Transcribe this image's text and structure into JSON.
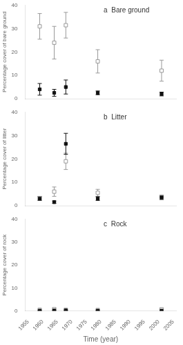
{
  "chart_data": [
    {
      "type": "scatter",
      "title": "a  Bare ground",
      "ylabel": "Percentage cover of bare ground",
      "x": [
        1959,
        1964,
        1968,
        1979,
        2001
      ],
      "series": [
        {
          "color": "#999999",
          "marker": "open_square",
          "values": [
            31.0,
            24.0,
            31.5,
            16.0,
            12.0
          ],
          "errors": [
            5.5,
            7.0,
            5.5,
            5.0,
            4.5
          ]
        },
        {
          "color": "#111111",
          "marker": "square",
          "values": [
            4.0,
            2.5,
            5.0,
            2.5,
            2.0
          ],
          "errors": [
            2.5,
            1.5,
            3.0,
            0.8,
            0.8
          ]
        }
      ],
      "xlim": [
        1954,
        2006
      ],
      "xticks": [
        1955,
        1960,
        1965,
        1970,
        1975,
        1980,
        1985,
        1990,
        1995,
        2000,
        2005
      ],
      "ylim": [
        0,
        40
      ],
      "yticks": [
        0,
        10,
        20,
        30,
        40
      ],
      "grid": false,
      "tick_labels": "y"
    },
    {
      "type": "scatter",
      "title": "b  Litter",
      "ylabel": "Percentage cover of litter",
      "x": [
        1959,
        1964,
        1968,
        1979,
        2001
      ],
      "series": [
        {
          "color": "#999999",
          "marker": "open_square",
          "values": [
            3.2,
            6.0,
            19.0,
            5.5,
            3.5
          ],
          "errors": [
            0.8,
            2.0,
            3.5,
            1.5,
            1.0
          ]
        },
        {
          "color": "#111111",
          "marker": "square",
          "values": [
            3.0,
            1.5,
            26.5,
            3.0,
            3.5
          ],
          "errors": [
            0.8,
            0.5,
            4.5,
            0.8,
            0.8
          ]
        }
      ],
      "xlim": [
        1954,
        2006
      ],
      "xticks": [
        1955,
        1960,
        1965,
        1970,
        1975,
        1980,
        1985,
        1990,
        1995,
        2000,
        2005
      ],
      "ylim": [
        0,
        40
      ],
      "yticks": [
        0,
        10,
        20,
        30,
        40
      ],
      "grid": false,
      "tick_labels": "y"
    },
    {
      "type": "scatter",
      "title": "c  Rock",
      "ylabel": "Percentage cover of rock",
      "xlabel": "Time (year)",
      "x": [
        1959,
        1964,
        1968,
        1979,
        2001
      ],
      "series": [
        {
          "color": "#999999",
          "marker": "open_square",
          "values": [
            0.5,
            0.8,
            0.5,
            0.4,
            0.7
          ],
          "errors": [
            0.2,
            0.3,
            0.2,
            0.15,
            0.2
          ]
        },
        {
          "color": "#111111",
          "marker": "square",
          "values": [
            0.1,
            0.2,
            0.2,
            0.1,
            0.1
          ],
          "errors": [
            0.05,
            0.1,
            0.05,
            0.05,
            0.05
          ]
        }
      ],
      "xlim": [
        1954,
        2006
      ],
      "xticks": [
        1955,
        1960,
        1965,
        1970,
        1975,
        1980,
        1985,
        1990,
        1995,
        2000,
        2005
      ],
      "ylim": [
        0,
        40
      ],
      "yticks": [
        0,
        10,
        20,
        30,
        40
      ],
      "grid": false
    }
  ]
}
